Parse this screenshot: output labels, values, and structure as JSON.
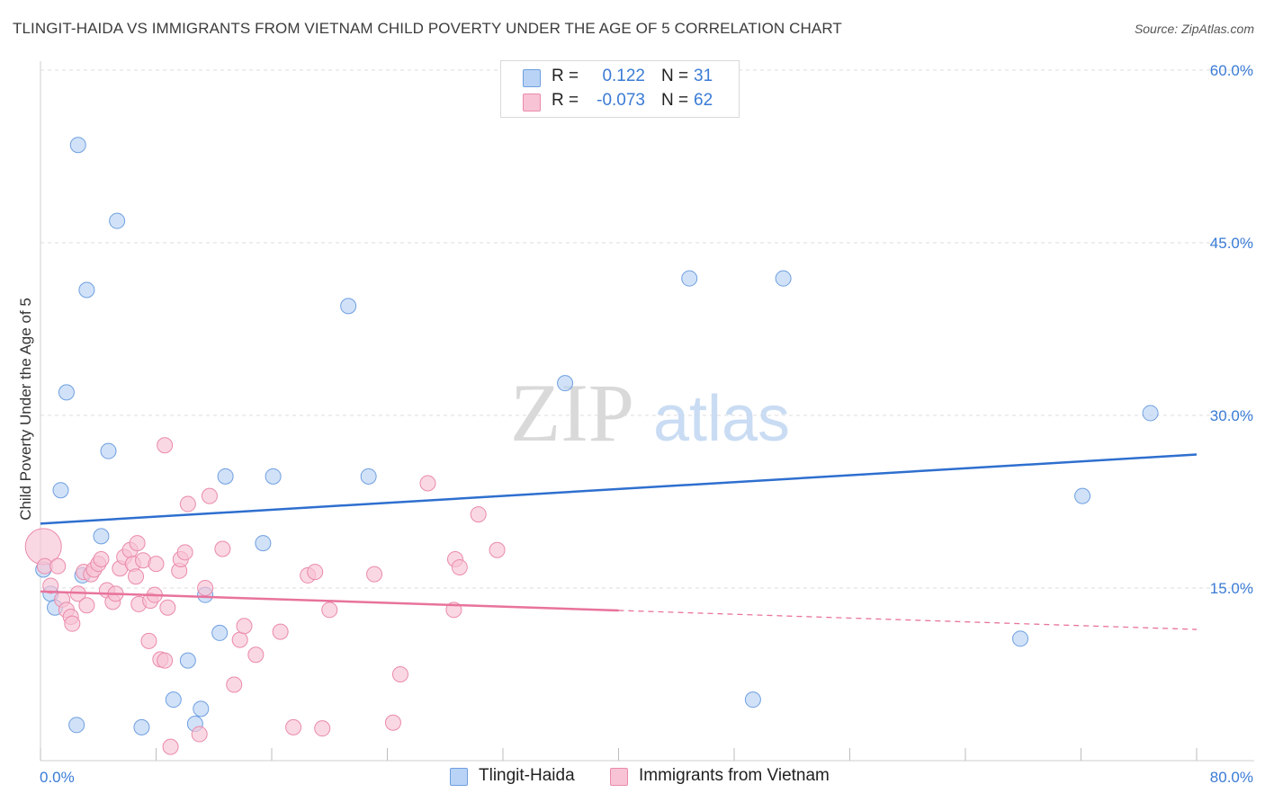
{
  "title": "TLINGIT-HAIDA VS IMMIGRANTS FROM VIETNAM CHILD POVERTY UNDER THE AGE OF 5 CORRELATION CHART",
  "source": "Source: ZipAtlas.com",
  "watermark": {
    "zip": "ZIP",
    "atlas": "atlas"
  },
  "legend_top": [
    {
      "r_label": "R =",
      "r_value": "0.122",
      "n_label": "N =",
      "n_value": "31"
    },
    {
      "r_label": "R =",
      "r_value": "-0.073",
      "n_label": "N =",
      "n_value": "62"
    }
  ],
  "colors": {
    "blue_fill": "#b8d3f5",
    "blue_stroke": "#6f9fe0",
    "blue_line": "#2e6fcf",
    "pink_fill": "#f8c3d4",
    "pink_stroke": "#ea8aab",
    "pink_line": "#e8739c",
    "tick_label": "#3a7bd5",
    "grid": "#dedede"
  },
  "chart_data": {
    "type": "scatter",
    "xlabel": "",
    "ylabel": "Child Poverty Under the Age of 5",
    "xlim": [
      0,
      80
    ],
    "ylim": [
      0,
      60
    ],
    "x_tick_labels": {
      "min": "0.0%",
      "max": "80.0%"
    },
    "y_ticks": [
      {
        "value": 15,
        "label": "15.0%"
      },
      {
        "value": 30,
        "label": "30.0%"
      },
      {
        "value": 45,
        "label": "45.0%"
      },
      {
        "value": 60,
        "label": "60.0%"
      }
    ],
    "grid": true,
    "legend_position": "bottom",
    "series": [
      {
        "name": "Tlingit-Haida",
        "color": "blue",
        "r": 0.122,
        "n": 31,
        "trend": {
          "x0": 0,
          "y0": 20.6,
          "x1": 80,
          "y1": 26.6,
          "solid_until": 80
        },
        "points": [
          [
            2.6,
            53.5
          ],
          [
            5.3,
            46.9
          ],
          [
            3.2,
            40.9
          ],
          [
            21.3,
            39.5
          ],
          [
            44.9,
            41.9
          ],
          [
            51.4,
            41.9
          ],
          [
            1.8,
            32.0
          ],
          [
            36.3,
            32.8
          ],
          [
            4.7,
            26.9
          ],
          [
            76.8,
            30.2
          ],
          [
            1.4,
            23.5
          ],
          [
            12.8,
            24.7
          ],
          [
            16.1,
            24.7
          ],
          [
            22.7,
            24.7
          ],
          [
            72.1,
            23.0
          ],
          [
            4.2,
            19.5
          ],
          [
            15.4,
            18.9
          ],
          [
            0.2,
            16.6
          ],
          [
            0.7,
            14.5
          ],
          [
            2.9,
            16.1
          ],
          [
            1.0,
            13.3
          ],
          [
            11.4,
            14.4
          ],
          [
            12.4,
            11.1
          ],
          [
            10.2,
            8.7
          ],
          [
            67.8,
            10.6
          ],
          [
            9.2,
            5.3
          ],
          [
            11.1,
            4.5
          ],
          [
            49.3,
            5.3
          ],
          [
            2.5,
            3.1
          ],
          [
            7.0,
            2.9
          ],
          [
            10.7,
            3.2
          ]
        ]
      },
      {
        "name": "Immigrants from Vietnam",
        "color": "pink",
        "r": -0.073,
        "n": 62,
        "trend": {
          "x0": 0,
          "y0": 14.7,
          "x1": 80,
          "y1": 11.4,
          "solid_until": 40
        },
        "points": [
          [
            0.2,
            18.6
          ],
          [
            0.3,
            16.9
          ],
          [
            0.7,
            15.2
          ],
          [
            1.2,
            16.9
          ],
          [
            1.5,
            14.0
          ],
          [
            1.8,
            13.1
          ],
          [
            2.1,
            12.5
          ],
          [
            2.2,
            11.9
          ],
          [
            2.6,
            14.5
          ],
          [
            3.0,
            16.4
          ],
          [
            3.2,
            13.5
          ],
          [
            3.5,
            16.2
          ],
          [
            3.7,
            16.6
          ],
          [
            4.0,
            17.1
          ],
          [
            4.2,
            17.5
          ],
          [
            4.6,
            14.8
          ],
          [
            5.0,
            13.8
          ],
          [
            5.2,
            14.5
          ],
          [
            5.5,
            16.7
          ],
          [
            5.8,
            17.7
          ],
          [
            6.2,
            18.3
          ],
          [
            6.4,
            17.1
          ],
          [
            6.6,
            16.0
          ],
          [
            6.8,
            13.6
          ],
          [
            7.1,
            17.4
          ],
          [
            7.6,
            13.9
          ],
          [
            7.9,
            14.4
          ],
          [
            8.0,
            17.1
          ],
          [
            8.3,
            8.8
          ],
          [
            8.6,
            8.7
          ],
          [
            8.8,
            13.3
          ],
          [
            9.6,
            16.5
          ],
          [
            9.7,
            17.5
          ],
          [
            10.2,
            22.3
          ],
          [
            11.4,
            15.0
          ],
          [
            11.7,
            23.0
          ],
          [
            12.6,
            18.4
          ],
          [
            13.4,
            6.6
          ],
          [
            13.8,
            10.5
          ],
          [
            14.1,
            11.7
          ],
          [
            14.9,
            9.2
          ],
          [
            16.6,
            11.2
          ],
          [
            17.5,
            2.9
          ],
          [
            18.5,
            16.1
          ],
          [
            19.0,
            16.4
          ],
          [
            19.5,
            2.8
          ],
          [
            20.0,
            13.1
          ],
          [
            23.1,
            16.2
          ],
          [
            24.4,
            3.3
          ],
          [
            24.9,
            7.5
          ],
          [
            26.8,
            24.1
          ],
          [
            28.6,
            13.1
          ],
          [
            28.7,
            17.5
          ],
          [
            29.0,
            16.8
          ],
          [
            30.3,
            21.4
          ],
          [
            31.6,
            18.3
          ],
          [
            7.5,
            10.4
          ],
          [
            8.6,
            27.4
          ],
          [
            9.0,
            1.2
          ],
          [
            11.0,
            2.3
          ],
          [
            6.7,
            18.9
          ],
          [
            10.0,
            18.1
          ]
        ]
      }
    ]
  }
}
